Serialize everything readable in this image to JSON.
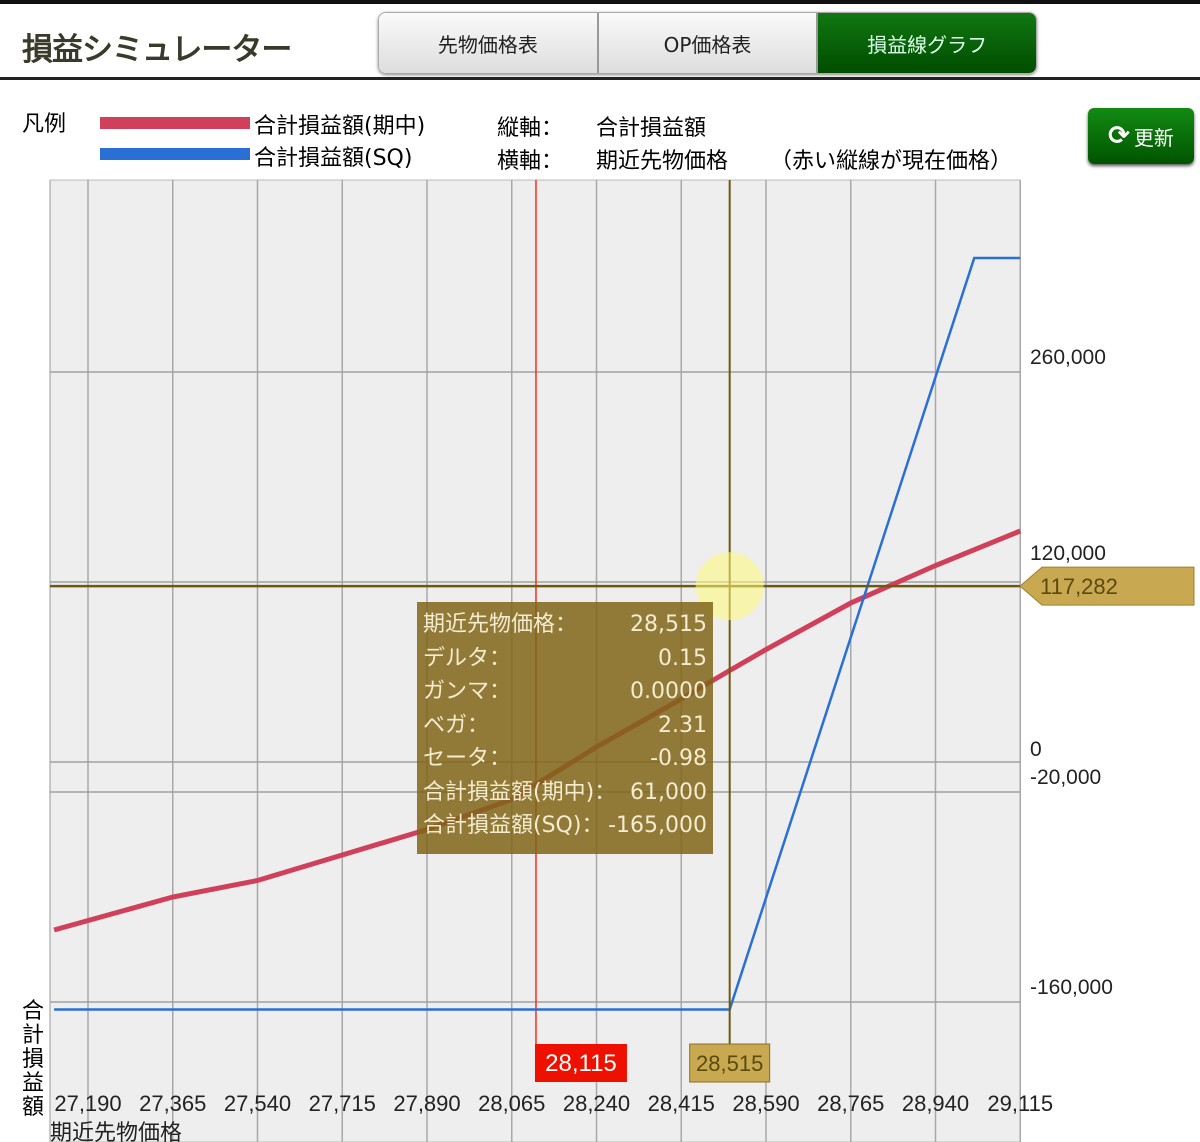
{
  "header": {
    "title": "損益シミュレーター",
    "tabs": [
      {
        "label": "先物価格表",
        "active": false
      },
      {
        "label": "OP価格表",
        "active": false
      },
      {
        "label": "損益線グラフ",
        "active": true
      }
    ]
  },
  "legend": {
    "label": "凡例",
    "items": [
      {
        "label": "合計損益額(期中)",
        "color": "#d0405a"
      },
      {
        "label": "合計損益額(SQ)",
        "color": "#2a6fd6"
      }
    ]
  },
  "axes_info": {
    "v_key": "縦軸：",
    "v_val": "合計損益額",
    "h_key": "横軸：",
    "h_val": "期近先物価格",
    "h_note": "（赤い縦線が現在価格）"
  },
  "refresh": {
    "label": "更新",
    "icon": "refresh-icon"
  },
  "chart_data": {
    "type": "line",
    "xlabel": "期近先物価格",
    "ylabel": "合計損益額",
    "x_ticks": [
      "27,190",
      "27,365",
      "27,540",
      "27,715",
      "27,890",
      "28,065",
      "28,240",
      "28,415",
      "28,590",
      "28,765",
      "28,940",
      "29,115"
    ],
    "x_tick_values": [
      27190,
      27365,
      27540,
      27715,
      27890,
      28065,
      28240,
      28415,
      28590,
      28765,
      28940,
      29115
    ],
    "y_ticks": [
      {
        "value": 260000,
        "label": "260,000"
      },
      {
        "value": 120000,
        "label": "120,000"
      },
      {
        "value": 0,
        "label": "0"
      },
      {
        "value": -20000,
        "label": "-20,000"
      },
      {
        "value": -160000,
        "label": "-160,000"
      }
    ],
    "xlim": [
      27120,
      29115
    ],
    "ylim": [
      -410000,
      390000
    ],
    "current_price": {
      "value": 28115,
      "label": "28,115",
      "color": "#ff2a1a"
    },
    "crosshair": {
      "x": 28515,
      "x_label": "28,515",
      "y": 117282,
      "y_label": "117,282",
      "color": "#6b5a10"
    },
    "series": [
      {
        "name": "合計損益額(期中)",
        "color": "#d0405a",
        "points": [
          [
            27120,
            -112000
          ],
          [
            27365,
            -90000
          ],
          [
            27540,
            -79000
          ],
          [
            27715,
            -62000
          ],
          [
            27890,
            -45000
          ],
          [
            28065,
            -25000
          ],
          [
            28240,
            10000
          ],
          [
            28415,
            42000
          ],
          [
            28515,
            61000
          ],
          [
            28590,
            75000
          ],
          [
            28765,
            106000
          ],
          [
            28940,
            131000
          ],
          [
            29115,
            154000
          ]
        ]
      },
      {
        "name": "合計損益額(SQ)",
        "color": "#2a6fd6",
        "points": [
          [
            27120,
            -165000
          ],
          [
            28515,
            -165000
          ],
          [
            29020,
            336000
          ],
          [
            29115,
            336000
          ]
        ]
      }
    ]
  },
  "tooltip": {
    "rows": [
      {
        "k": "期近先物価格：",
        "v": "28,515"
      },
      {
        "k": "デルタ：",
        "v": "0.15"
      },
      {
        "k": "ガンマ：",
        "v": "0.0000"
      },
      {
        "k": "ベガ：",
        "v": "2.31"
      },
      {
        "k": "セータ：",
        "v": "-0.98"
      },
      {
        "k": "合計損益額(期中)：",
        "v": "61,000"
      },
      {
        "k": "合計損益額(SQ)：",
        "v": "-165,000"
      }
    ]
  }
}
